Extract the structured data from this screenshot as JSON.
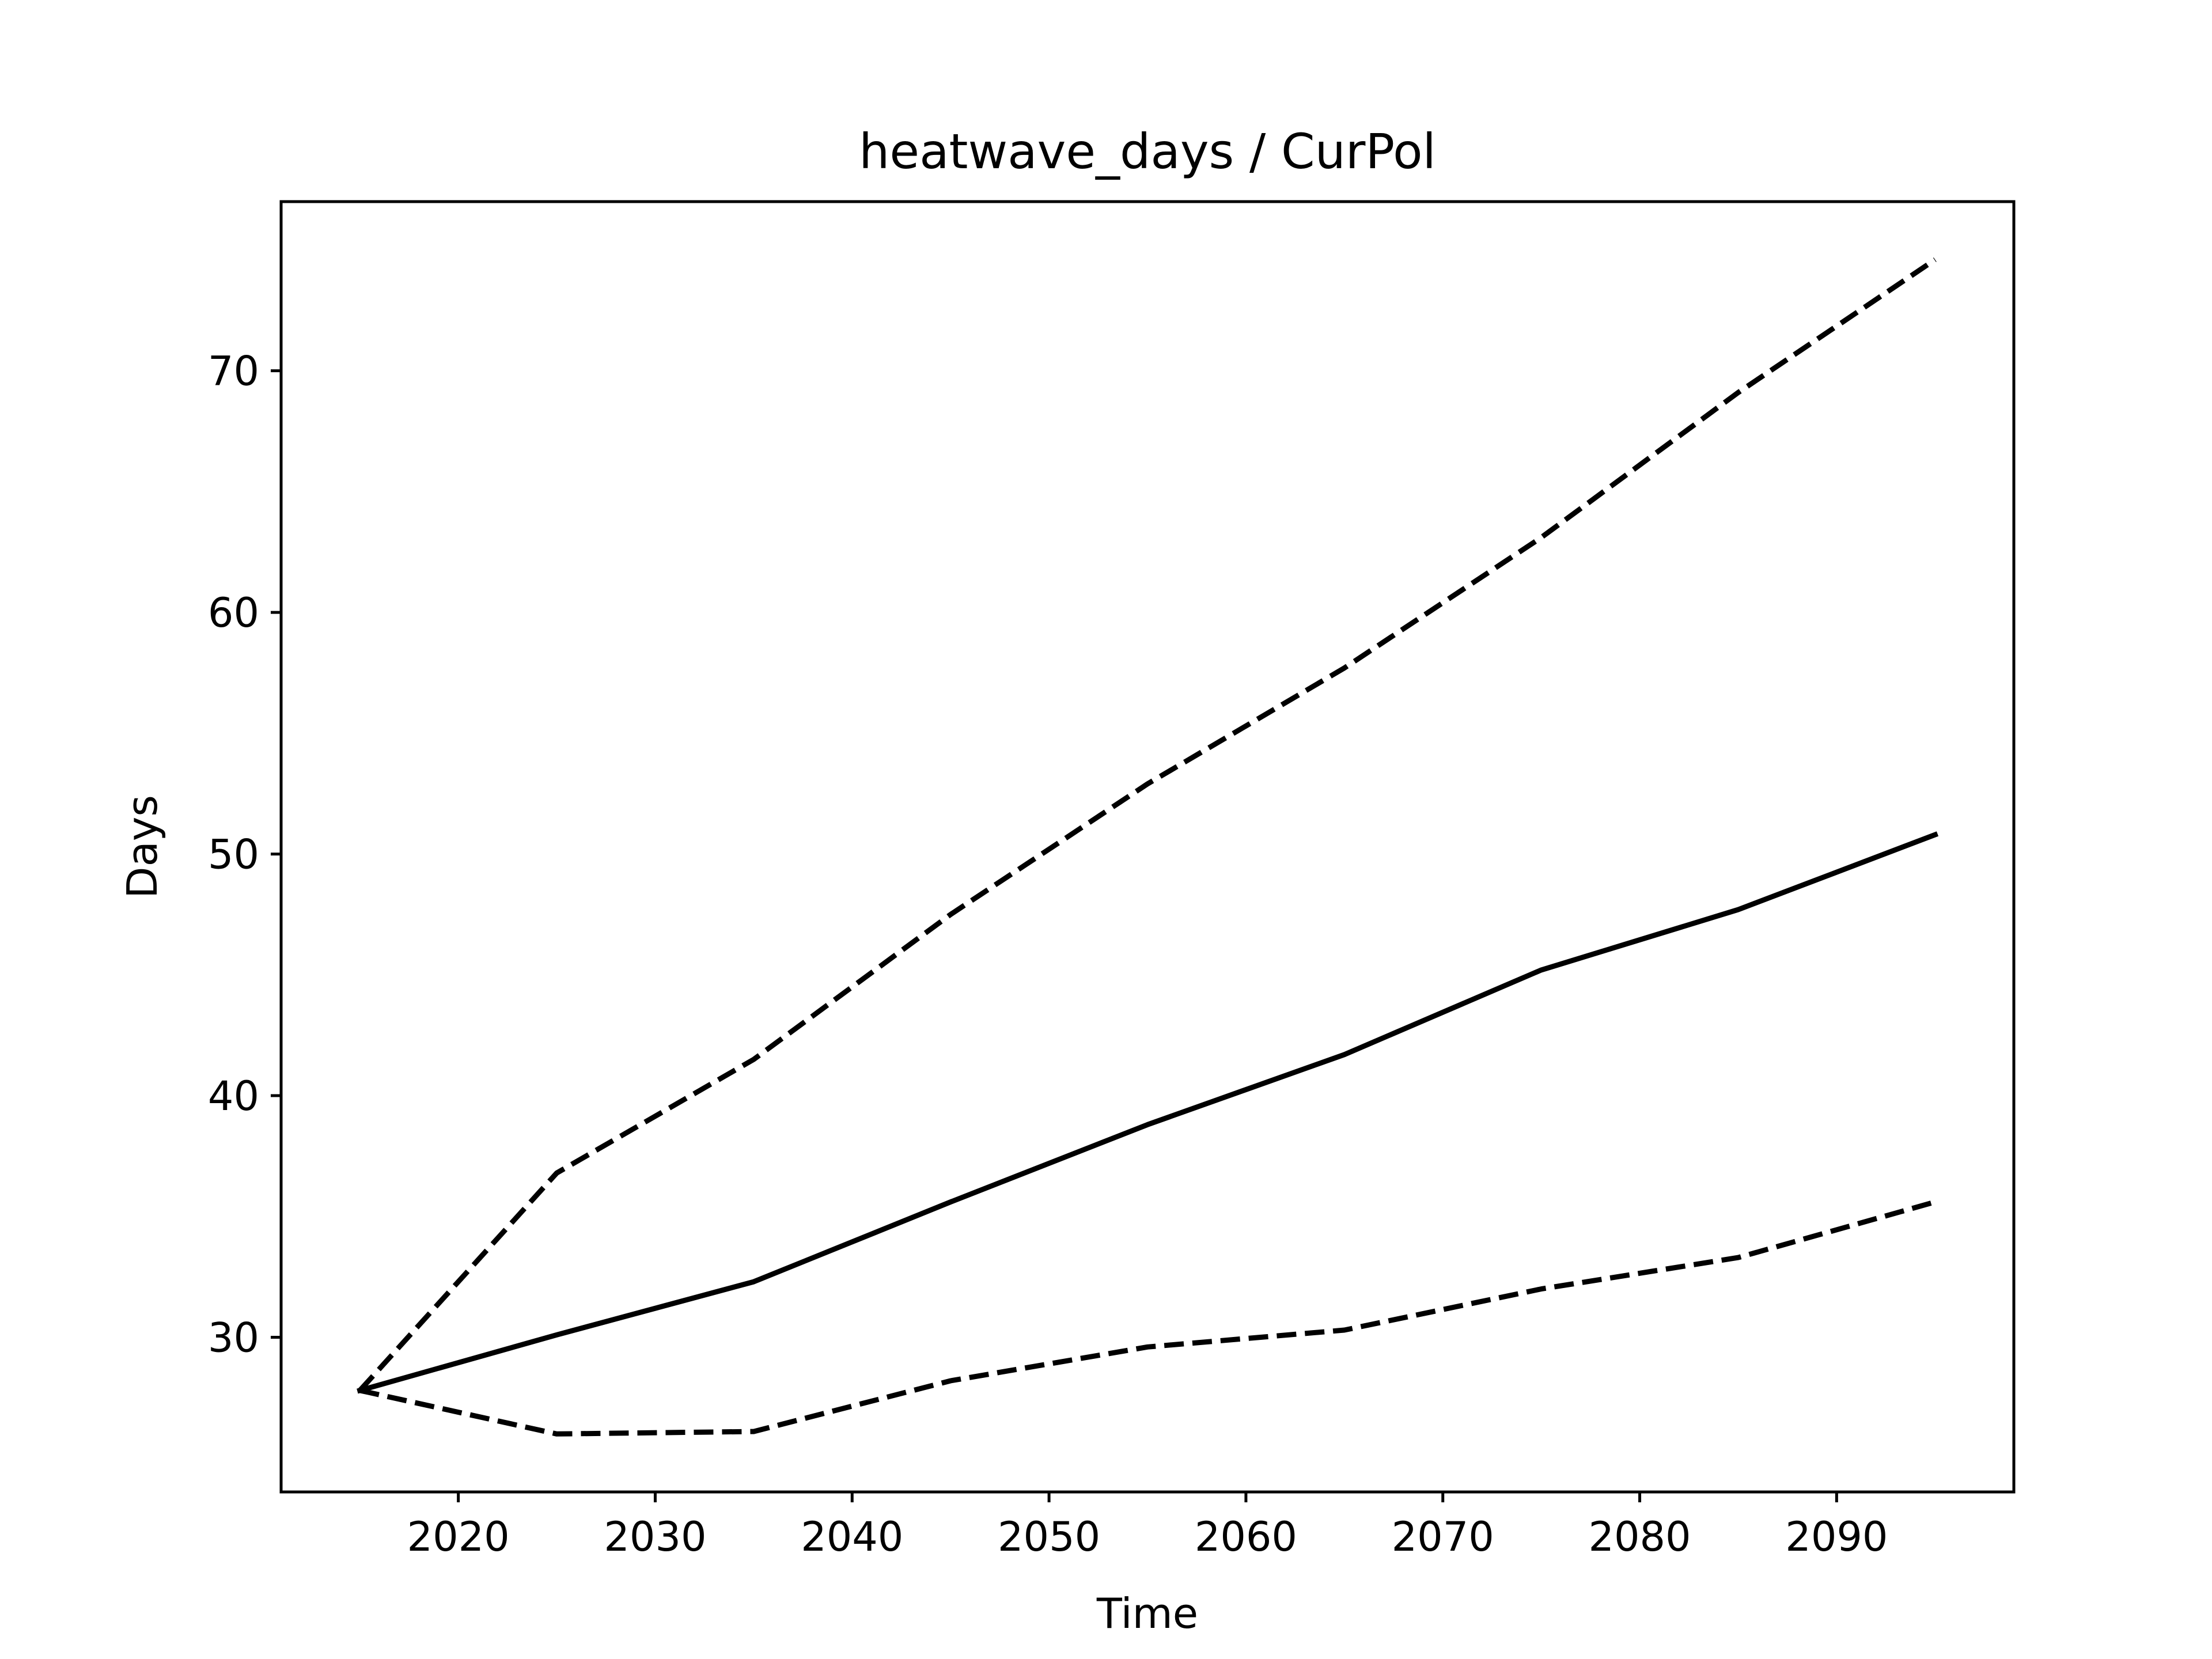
{
  "chart_data": {
    "type": "line",
    "title": "heatwave_days / CurPol",
    "xlabel": "Time",
    "ylabel": "Days",
    "xlim": [
      2011,
      2099
    ],
    "ylim": [
      23.6,
      77.0
    ],
    "xticks": [
      2020,
      2030,
      2040,
      2050,
      2060,
      2070,
      2080,
      2090
    ],
    "yticks": [
      30,
      40,
      50,
      60,
      70
    ],
    "grid": false,
    "legend": false,
    "x": [
      2015,
      2025,
      2035,
      2045,
      2055,
      2065,
      2075,
      2085,
      2095
    ],
    "series": [
      {
        "style": "solid",
        "color": "#000000",
        "values": [
          27.8,
          30.1,
          32.3,
          35.6,
          38.8,
          41.7,
          45.2,
          47.7,
          50.8
        ]
      },
      {
        "style": "dashed",
        "color": "#000000",
        "values": [
          27.8,
          36.8,
          41.5,
          47.5,
          52.9,
          57.7,
          63.1,
          69.1,
          74.6
        ]
      },
      {
        "style": "dashed",
        "color": "#000000",
        "values": [
          27.8,
          26.0,
          26.1,
          28.2,
          29.6,
          30.3,
          32.0,
          33.3,
          35.6
        ]
      }
    ]
  }
}
